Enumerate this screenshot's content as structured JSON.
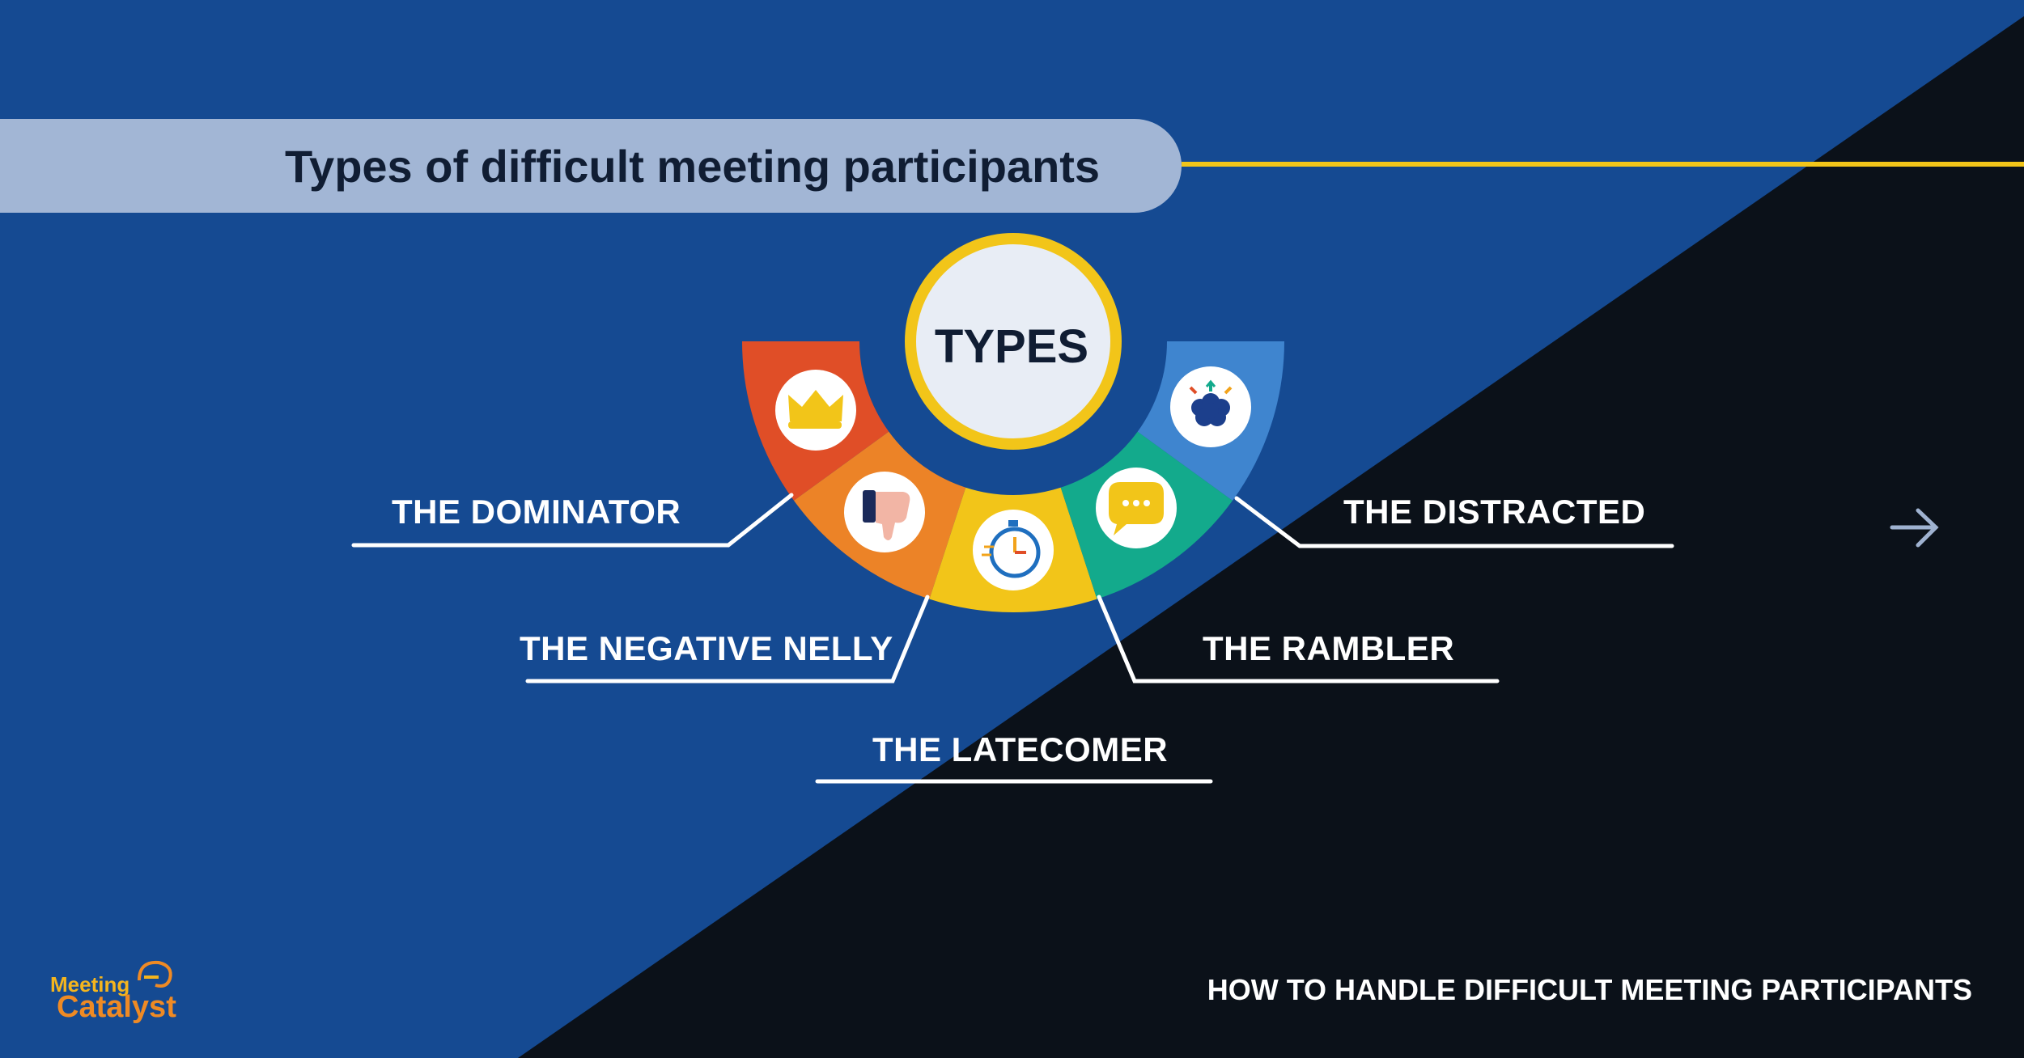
{
  "title": "Types of difficult meeting participants",
  "center_label": "TYPES",
  "types": [
    {
      "label": "THE DOMINATOR",
      "icon": "crown-icon",
      "color": "#e04e27"
    },
    {
      "label": "THE NEGATIVE NELLY",
      "icon": "thumbs-down-icon",
      "color": "#ec8327"
    },
    {
      "label": "THE LATECOMER",
      "icon": "stopwatch-icon",
      "color": "#f2c519"
    },
    {
      "label": "THE RAMBLER",
      "icon": "speech-bubble-icon",
      "color": "#13aa8c"
    },
    {
      "label": "THE DISTRACTED",
      "icon": "brain-icon",
      "color": "#3f85cf"
    }
  ],
  "footer": "HOW TO HANDLE DIFFICULT MEETING PARTICIPANTS",
  "logo": {
    "line1": "Meeting",
    "line2": "Catalyst"
  },
  "colors": {
    "background_blue": "#154a92",
    "background_dark": "#0b1119",
    "accent_yellow": "#f2c519",
    "title_bar": "#a2b6d5",
    "heading_text": "#101d33"
  }
}
